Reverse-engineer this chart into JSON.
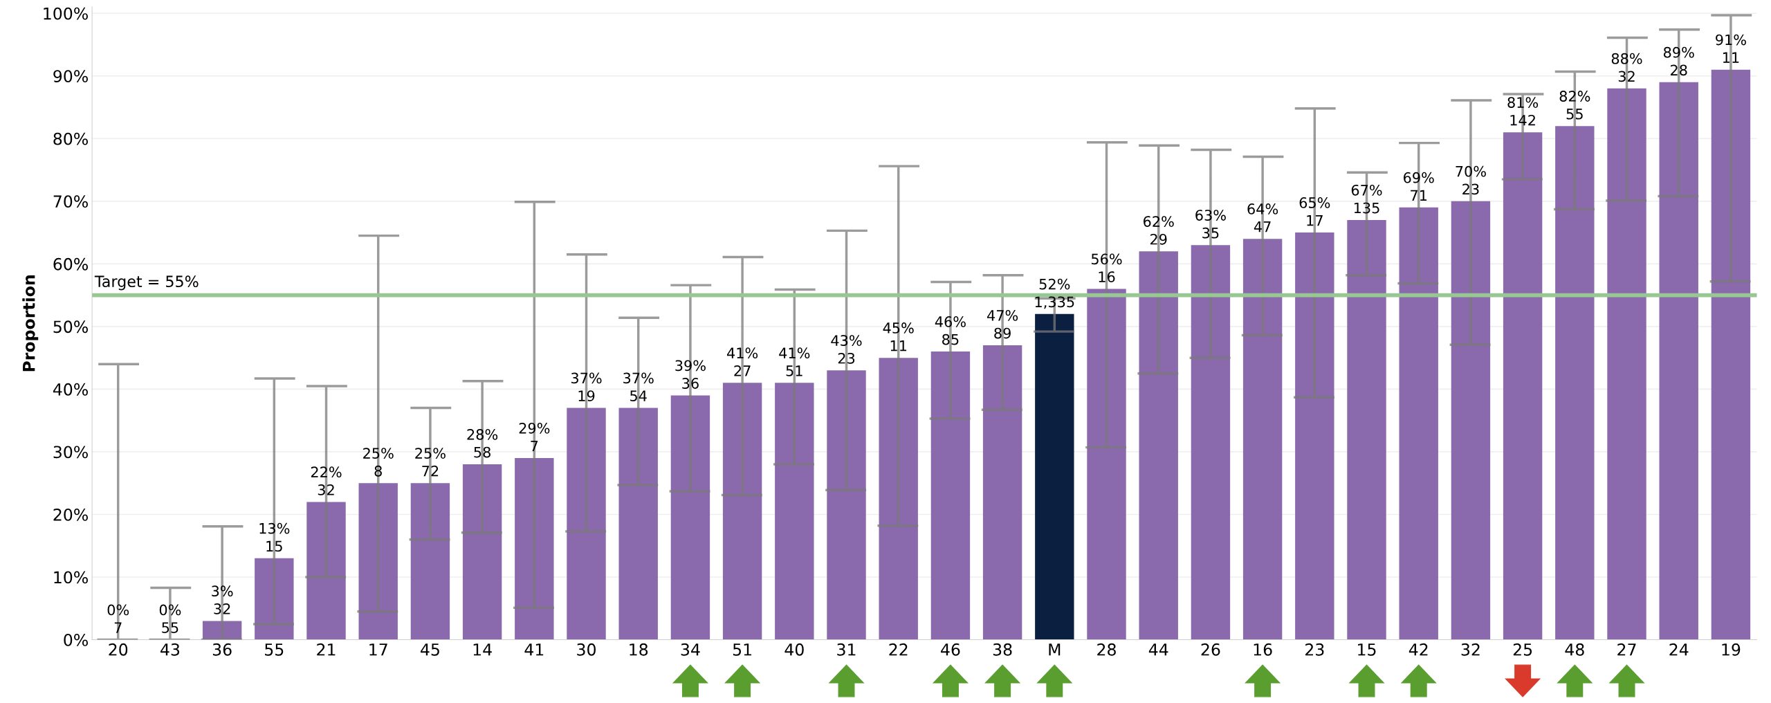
{
  "chart_data": {
    "type": "bar",
    "ylabel": "Proportion",
    "categories": [
      "20",
      "43",
      "36",
      "55",
      "21",
      "17",
      "45",
      "14",
      "41",
      "30",
      "18",
      "34",
      "51",
      "40",
      "31",
      "22",
      "46",
      "38",
      "M",
      "28",
      "44",
      "26",
      "16",
      "23",
      "15",
      "42",
      "32",
      "25",
      "48",
      "27",
      "24",
      "19"
    ],
    "values": [
      0,
      0,
      3,
      13,
      22,
      25,
      25,
      28,
      29,
      37,
      37,
      39,
      41,
      41,
      43,
      45,
      46,
      47,
      52,
      56,
      62,
      63,
      64,
      65,
      67,
      69,
      70,
      81,
      82,
      88,
      89,
      91
    ],
    "colors": [
      "#8a69ad",
      "#8a69ad",
      "#8a69ad",
      "#8a69ad",
      "#8a69ad",
      "#8a69ad",
      "#8a69ad",
      "#8a69ad",
      "#8a69ad",
      "#8a69ad",
      "#8a69ad",
      "#8a69ad",
      "#8a69ad",
      "#8a69ad",
      "#8a69ad",
      "#8a69ad",
      "#8a69ad",
      "#8a69ad",
      "#0b1f40",
      "#8a69ad",
      "#8a69ad",
      "#8a69ad",
      "#8a69ad",
      "#8a69ad",
      "#8a69ad",
      "#8a69ad",
      "#8a69ad",
      "#8a69ad",
      "#8a69ad",
      "#8a69ad",
      "#8a69ad",
      "#8a69ad"
    ],
    "errors": [
      [
        0,
        44
      ],
      [
        0,
        8.3
      ],
      [
        0,
        18.1
      ],
      [
        2.5,
        41.7
      ],
      [
        10,
        40.5
      ],
      [
        4.5,
        64.5
      ],
      [
        16,
        37
      ],
      [
        17.1,
        41.3
      ],
      [
        5.1,
        69.9
      ],
      [
        17.3,
        61.5
      ],
      [
        24.7,
        51.4
      ],
      [
        23.7,
        56.6
      ],
      [
        23.1,
        61.1
      ],
      [
        28,
        55.9
      ],
      [
        23.9,
        65.3
      ],
      [
        18.2,
        75.6
      ],
      [
        35.3,
        57.1
      ],
      [
        36.7,
        58.2
      ],
      [
        49.2,
        54.5
      ],
      [
        30.7,
        79.4
      ],
      [
        42.5,
        78.9
      ],
      [
        45,
        78.2
      ],
      [
        48.6,
        77.1
      ],
      [
        38.7,
        84.8
      ],
      [
        58.2,
        74.6
      ],
      [
        56.9,
        79.3
      ],
      [
        47.1,
        86.1
      ],
      [
        73.5,
        87.1
      ],
      [
        68.7,
        90.7
      ],
      [
        70.1,
        96.1
      ],
      [
        70.8,
        97.4
      ],
      [
        57.2,
        99.7
      ]
    ],
    "value_labels": [
      "0%\n7",
      "0%\n55",
      "3%\n32",
      "13%\n15",
      "22%\n32",
      "25%\n8",
      "25%\n72",
      "28%\n58",
      "29%\n7",
      "37%\n19",
      "37%\n54",
      "39%\n36",
      "41%\n27",
      "41%\n51",
      "43%\n23",
      "45%\n11",
      "46%\n85",
      "47%\n89",
      "52%\n1,335",
      "56%\n16",
      "62%\n29",
      "63%\n35",
      "64%\n47",
      "65%\n17",
      "67%\n135",
      "69%\n71",
      "70%\n23",
      "81%\n142",
      "82%\n55",
      "88%\n32",
      "89%\n28",
      "91%\n11"
    ],
    "ylim": [
      0,
      101
    ],
    "yticks": [
      {
        "value": 0,
        "label": "0%"
      },
      {
        "value": 10,
        "label": "10%"
      },
      {
        "value": 20,
        "label": "20%"
      },
      {
        "value": 30,
        "label": "30%"
      },
      {
        "value": 40,
        "label": "40%"
      },
      {
        "value": 50,
        "label": "50%"
      },
      {
        "value": 60,
        "label": "60%"
      },
      {
        "value": 70,
        "label": "70%"
      },
      {
        "value": 80,
        "label": "80%"
      },
      {
        "value": 90,
        "label": "90%"
      },
      {
        "value": 100,
        "label": "100%"
      }
    ],
    "ref_lines": [
      {
        "axis": "y",
        "value": 55,
        "label": "Target = 55%",
        "color": "#98c794",
        "line_style": "solid"
      }
    ],
    "grid": "y",
    "legend": false
  }
}
